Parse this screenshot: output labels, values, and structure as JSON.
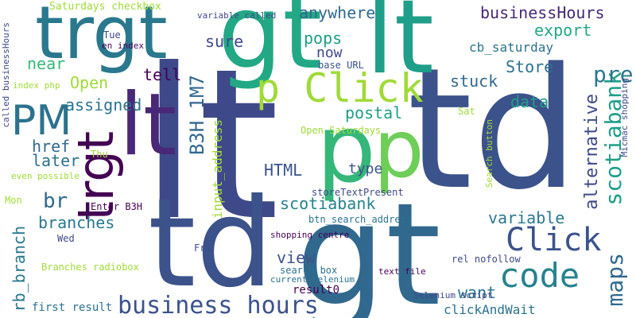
{
  "words": [
    {
      "text": "lt",
      "color": "#3e4989"
    },
    {
      "text": "td",
      "color": "#3b528b"
    },
    {
      "text": "gt",
      "color": "#31688e"
    },
    {
      "text": "lt",
      "color": "#1f9e89"
    },
    {
      "text": "trgt",
      "color": "#2a788e"
    },
    {
      "text": "gt",
      "color": "#22a884"
    },
    {
      "text": "lt",
      "color": "#482878"
    },
    {
      "text": "td",
      "color": "#3b528b"
    },
    {
      "text": "p",
      "color": "#35b779"
    },
    {
      "text": "p",
      "color": "#6ece58"
    },
    {
      "text": "trgt",
      "color": "#440154"
    },
    {
      "text": "PM",
      "color": "#2c728e"
    },
    {
      "text": "p Click",
      "color": "#a0da39"
    },
    {
      "text": "code",
      "color": "#26828e"
    },
    {
      "text": "Click",
      "color": "#3b528b"
    },
    {
      "text": "business hours",
      "color": "#3b528b"
    },
    {
      "text": "scotiabank",
      "color": "#1f9e89"
    },
    {
      "text": "maps",
      "color": "#31688e"
    },
    {
      "text": "alternative",
      "color": "#3e4989"
    },
    {
      "text": "pre",
      "color": "#2a788e"
    },
    {
      "text": "B3H 1M7",
      "color": "#31688e"
    },
    {
      "text": "businessHours",
      "color": "#482878"
    },
    {
      "text": "br",
      "color": "#31688e"
    },
    {
      "text": "branches",
      "color": "#2a788e"
    },
    {
      "text": "HTML",
      "color": "#3b528b"
    },
    {
      "text": "scotiabank",
      "color": "#26828e"
    },
    {
      "text": "variable",
      "color": "#2a788e"
    },
    {
      "text": "export",
      "color": "#22a884"
    },
    {
      "text": "Store",
      "color": "#2c728e"
    },
    {
      "text": "data",
      "color": "#1f9e89"
    },
    {
      "text": "stuck",
      "color": "#31688e"
    },
    {
      "text": "postal",
      "color": "#1f9e89"
    },
    {
      "text": "pops",
      "color": "#1f9e89"
    },
    {
      "text": "anywhere",
      "color": "#31688e"
    },
    {
      "text": "now",
      "color": "#3e4989"
    },
    {
      "text": "sure",
      "color": "#3e4989"
    },
    {
      "text": "tell",
      "color": "#440154"
    },
    {
      "text": "assigned",
      "color": "#2c728e"
    },
    {
      "text": "Open",
      "color": "#a0da39"
    },
    {
      "text": "near",
      "color": "#35b779"
    },
    {
      "text": "href",
      "color": "#31688e"
    },
    {
      "text": "later",
      "color": "#2c728e"
    },
    {
      "text": "want",
      "color": "#2c728e"
    },
    {
      "text": "view",
      "color": "#3b528b"
    },
    {
      "text": "type",
      "color": "#3b528b"
    },
    {
      "text": "cb_saturday",
      "color": "#2c728e"
    },
    {
      "text": "input_address",
      "color": "#a0da39"
    },
    {
      "text": "rb_branch",
      "color": "#2a788e"
    },
    {
      "text": "Saturdays checkbox",
      "color": "#a0da39"
    },
    {
      "text": "variable called",
      "color": "#3e4989"
    },
    {
      "text": "called businessHours",
      "color": "#3e4989"
    },
    {
      "text": "Tue",
      "color": "#3e4989"
    },
    {
      "text": "en index",
      "color": "#440154"
    },
    {
      "text": "index php",
      "color": "#a0da39"
    },
    {
      "text": "base URL",
      "color": "#3b528b"
    },
    {
      "text": "Open Saturdays",
      "color": "#a0da39"
    },
    {
      "text": "Sat",
      "color": "#a0da39"
    },
    {
      "text": "Search button",
      "color": "#a0da39"
    },
    {
      "text": "Micmac shopping",
      "color": "#3e4989"
    },
    {
      "text": "Thu",
      "color": "#a0da39"
    },
    {
      "text": "even possible",
      "color": "#a0da39"
    },
    {
      "text": "Mon",
      "color": "#a0da39"
    },
    {
      "text": "Enter B3H",
      "color": "#440154"
    },
    {
      "text": "storeTextPresent",
      "color": "#3e4989"
    },
    {
      "text": "btn_search_address",
      "color": "#2c728e"
    },
    {
      "text": "Wed",
      "color": "#3e4989"
    },
    {
      "text": "Fri",
      "color": "#3e4989"
    },
    {
      "text": "shopping centre",
      "color": "#440154"
    },
    {
      "text": "Branches radiobox",
      "color": "#a0da39"
    },
    {
      "text": "rel nofollow",
      "color": "#3e4989"
    },
    {
      "text": "search box",
      "color": "#2c728e"
    },
    {
      "text": "current Selenium",
      "color": "#2c728e"
    },
    {
      "text": "text file",
      "color": "#440154"
    },
    {
      "text": "result0",
      "color": "#440154"
    },
    {
      "text": "clickAndWait",
      "color": "#2c728e"
    },
    {
      "text": "first result",
      "color": "#2c728e"
    },
    {
      "text": "Selenium script",
      "color": "#3e4989"
    }
  ]
}
